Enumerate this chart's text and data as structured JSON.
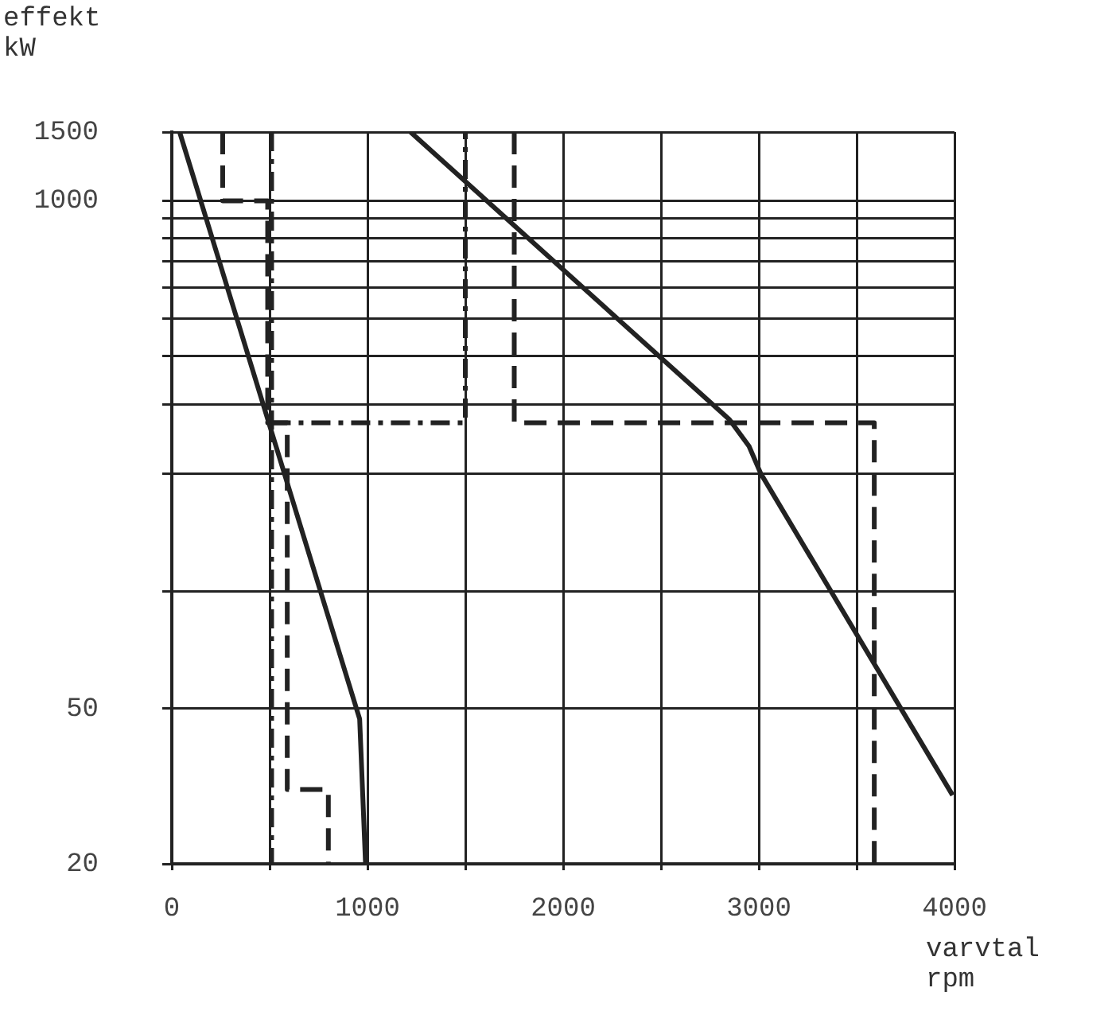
{
  "chart_data": {
    "type": "line",
    "xlabel": "varvtal rpm",
    "ylabel": "effekt kW",
    "log": "y",
    "xlim": [
      0,
      4000
    ],
    "xticks": [
      0,
      {
        "value": 500,
        "label": null
      },
      1000,
      {
        "value": 1500,
        "label": null
      },
      2000,
      {
        "value": 2500,
        "label": null
      },
      3000,
      {
        "value": 3500,
        "label": null
      },
      4000
    ],
    "ylim": [
      20,
      1500
    ],
    "yticks": [
      20,
      50,
      {
        "value": 100,
        "label": null
      },
      {
        "value": 200,
        "label": null
      },
      {
        "value": 300,
        "label": null
      },
      {
        "value": 400,
        "label": null
      },
      {
        "value": 500,
        "label": null
      },
      {
        "value": 600,
        "label": null
      },
      {
        "value": 700,
        "label": null
      },
      {
        "value": 800,
        "label": null
      },
      {
        "value": 900,
        "label": null
      },
      1000,
      1500
    ],
    "grid": true,
    "legend": false,
    "marker": "none",
    "series": [
      {
        "color": "#222222",
        "line_style": "solid",
        "x": [
          40,
          960,
          990
        ],
        "values": [
          1500,
          47,
          20
        ]
      },
      {
        "color": "#222222",
        "line_style": "solid",
        "x": [
          1220,
          2850,
          2950,
          3010,
          3990
        ],
        "values": [
          1500,
          275,
          235,
          200,
          30
        ]
      },
      {
        "color": "#222222",
        "line_style": "dashed",
        "x": [
          260,
          260,
          490,
          490,
          590,
          590,
          800,
          800
        ],
        "values": [
          1500,
          1000,
          1000,
          270,
          270,
          31,
          31,
          20
        ]
      },
      {
        "color": "#222222",
        "line_style": "dashdot",
        "x": [
          510,
          510
        ],
        "values": [
          1500,
          20
        ]
      },
      {
        "color": "#222222",
        "line_style": "dashdot",
        "x": [
          510,
          1500,
          1500
        ],
        "values": [
          270,
          270,
          1500
        ]
      },
      {
        "color": "#222222",
        "line_style": "dashed",
        "x": [
          1750,
          1750,
          3590,
          3590
        ],
        "values": [
          1500,
          270,
          270,
          20
        ]
      }
    ]
  }
}
